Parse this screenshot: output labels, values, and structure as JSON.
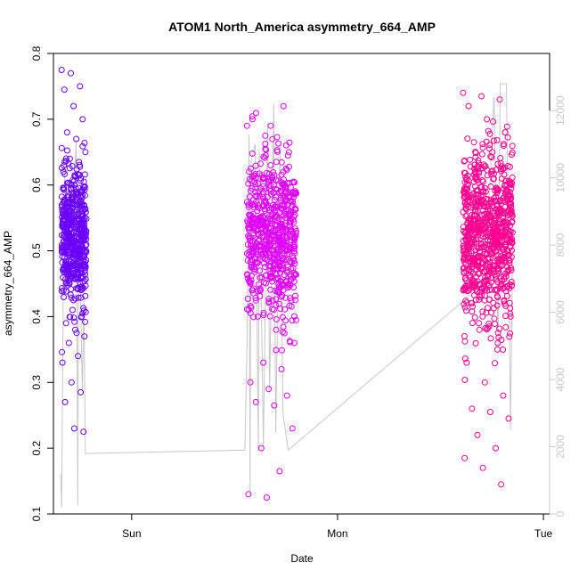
{
  "chart_data": {
    "type": "scatter",
    "title": "ATOM1 North_America asymmetry_664_AMP",
    "xlabel": "Date",
    "ylabel": "asymmetry_664_AMP",
    "xlim": [
      -0.38,
      2.03
    ],
    "x_ticks": [
      {
        "value": 0,
        "label": "Sun"
      },
      {
        "value": 1,
        "label": "Mon"
      },
      {
        "value": 2,
        "label": "Tue"
      }
    ],
    "ylim": [
      0.1,
      0.8
    ],
    "y_ticks": [
      0.1,
      0.2,
      0.3,
      0.4,
      0.5,
      0.6,
      0.7,
      0.8
    ],
    "y2lim": [
      0,
      13700
    ],
    "y2_ticks": [
      0,
      2000,
      4000,
      6000,
      8000,
      10000,
      12000
    ],
    "grid": false,
    "legend": "none",
    "colors": {
      "cluster1": "#6a00ff",
      "cluster2": "#e100ff",
      "cluster3": "#ff0090",
      "secondary_line": "#c8c8c8"
    },
    "series": [
      {
        "type": "scatter",
        "clusters": [
          {
            "color": "#6a00ff",
            "x_range": [
              -0.34,
              -0.22
            ],
            "center": 0.52,
            "spread": 0.05,
            "count": 520,
            "outliers": [
              0.775,
              0.77,
              0.75,
              0.745,
              0.72,
              0.7,
              0.68,
              0.67,
              0.65,
              0.64,
              0.635,
              0.62,
              0.41,
              0.4,
              0.39,
              0.38,
              0.37,
              0.36,
              0.34,
              0.33,
              0.3,
              0.285,
              0.27,
              0.23,
              0.225
            ]
          },
          {
            "color": "#e100ff",
            "x_range": [
              0.56,
              0.8
            ],
            "center": 0.52,
            "spread": 0.06,
            "count": 650,
            "outliers": [
              0.69,
              0.675,
              0.72,
              0.7,
              0.69,
              0.65,
              0.4,
              0.38,
              0.36,
              0.33,
              0.32,
              0.3,
              0.29,
              0.28,
              0.27,
              0.265,
              0.23,
              0.2,
              0.165,
              0.13,
              0.125
            ]
          },
          {
            "color": "#ff0090",
            "x_range": [
              1.61,
              1.85
            ],
            "center": 0.52,
            "spread": 0.065,
            "count": 820,
            "outliers": [
              0.74,
              0.735,
              0.73,
              0.72,
              0.7,
              0.68,
              0.665,
              0.65,
              0.4,
              0.38,
              0.36,
              0.33,
              0.3,
              0.28,
              0.26,
              0.255,
              0.245,
              0.22,
              0.2,
              0.185,
              0.17,
              0.145
            ]
          }
        ]
      },
      {
        "type": "line",
        "axis": "right",
        "points": [
          [
            -0.345,
            1200
          ],
          [
            -0.34,
            200
          ],
          [
            -0.335,
            4500
          ],
          [
            -0.33,
            9200
          ],
          [
            -0.325,
            10200
          ],
          [
            -0.31,
            10500
          ],
          [
            -0.29,
            10300
          ],
          [
            -0.28,
            9500
          ],
          [
            -0.27,
            11100
          ],
          [
            -0.262,
            250
          ],
          [
            -0.258,
            8000
          ],
          [
            -0.25,
            7200
          ],
          [
            -0.24,
            3600
          ],
          [
            -0.232,
            6400
          ],
          [
            -0.225,
            1800
          ],
          [
            0.55,
            1900
          ],
          [
            0.56,
            5000
          ],
          [
            0.57,
            11300
          ],
          [
            0.575,
            550
          ],
          [
            0.58,
            10500
          ],
          [
            0.6,
            11000
          ],
          [
            0.615,
            1900
          ],
          [
            0.62,
            10800
          ],
          [
            0.64,
            2000
          ],
          [
            0.66,
            11600
          ],
          [
            0.67,
            3600
          ],
          [
            0.69,
            12200
          ],
          [
            0.7,
            2400
          ],
          [
            0.72,
            11000
          ],
          [
            0.735,
            3000
          ],
          [
            0.76,
            1900
          ],
          [
            1.7,
            6800
          ],
          [
            1.74,
            9800
          ],
          [
            1.76,
            12400
          ],
          [
            1.78,
            5000
          ],
          [
            1.79,
            12800
          ],
          [
            1.82,
            12800
          ],
          [
            1.83,
            8500
          ],
          [
            1.84,
            2500
          ],
          [
            1.85,
            8000
          ]
        ]
      }
    ]
  }
}
